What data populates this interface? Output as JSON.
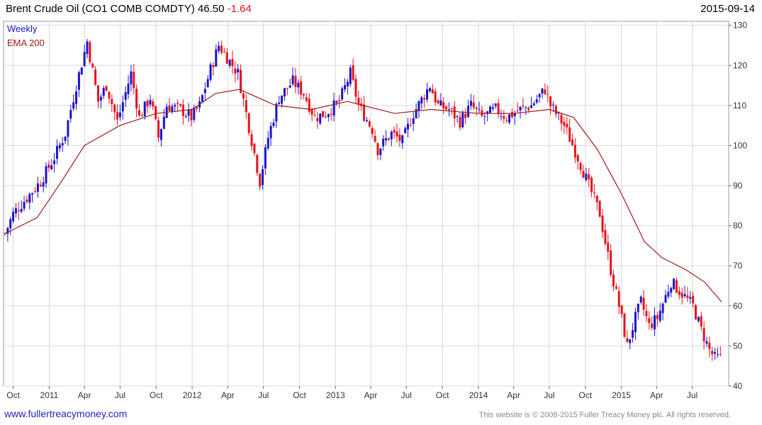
{
  "header": {
    "title": "Brent Crude Oil",
    "symbol": "(CO1 COMB COMDTY)",
    "last": "46.50",
    "change": "-1.64",
    "date": "2015-09-14"
  },
  "footer": {
    "site": "www.fullertreacymoney.com",
    "copyright": "This website is © 2008-2015 Fuller Treacy Money plc. All rights reserved."
  },
  "colors": {
    "up": "#1c14cc",
    "down": "#e8111c",
    "ema": "#a01a1a",
    "grid": "#d9d9d9",
    "legend_weekly": "#1c14cc",
    "legend_ema": "#a01a1a"
  },
  "chart_data": {
    "type": "candlestick",
    "legend": [
      "Weekly",
      "EMA 200"
    ],
    "y_ticks": [
      40,
      50,
      60,
      70,
      80,
      90,
      100,
      110,
      120,
      130
    ],
    "ylim": [
      40,
      131
    ],
    "x_ticks": [
      "Oct",
      "2011",
      "Apr",
      "Jul",
      "Oct",
      "2012",
      "Apr",
      "Jul",
      "Oct",
      "2013",
      "Apr",
      "Jul",
      "Oct",
      "2014",
      "Apr",
      "Jul",
      "Oct",
      "2015",
      "Apr",
      "Jul"
    ],
    "x_tick_dates": [
      "2010-10-01",
      "2011-01-01",
      "2011-04-01",
      "2011-07-01",
      "2011-10-01",
      "2012-01-01",
      "2012-04-01",
      "2012-07-01",
      "2012-10-01",
      "2013-01-01",
      "2013-04-01",
      "2013-07-01",
      "2013-10-01",
      "2014-01-01",
      "2014-04-01",
      "2014-07-01",
      "2014-10-01",
      "2015-01-01",
      "2015-04-01",
      "2015-07-01"
    ],
    "x_start": "2010-09-10",
    "x_end": "2015-09-14",
    "price_path": [
      [
        "2010-09-10",
        78
      ],
      [
        "2010-10-01",
        83
      ],
      [
        "2010-11-05",
        87
      ],
      [
        "2010-12-10",
        91
      ],
      [
        "2011-01-14",
        97
      ],
      [
        "2011-02-11",
        103
      ],
      [
        "2011-03-11",
        115
      ],
      [
        "2011-04-08",
        126
      ],
      [
        "2011-05-06",
        111
      ],
      [
        "2011-05-27",
        115
      ],
      [
        "2011-06-24",
        106
      ],
      [
        "2011-07-29",
        118
      ],
      [
        "2011-08-19",
        107
      ],
      [
        "2011-09-16",
        112
      ],
      [
        "2011-10-07",
        102
      ],
      [
        "2011-10-28",
        110
      ],
      [
        "2011-12-02",
        109
      ],
      [
        "2011-12-30",
        107
      ],
      [
        "2012-01-20",
        110
      ],
      [
        "2012-02-17",
        119
      ],
      [
        "2012-03-09",
        125
      ],
      [
        "2012-03-30",
        122
      ],
      [
        "2012-04-27",
        118
      ],
      [
        "2012-05-18",
        108
      ],
      [
        "2012-06-08",
        98
      ],
      [
        "2012-06-22",
        91
      ],
      [
        "2012-07-13",
        102
      ],
      [
        "2012-08-10",
        112
      ],
      [
        "2012-09-14",
        116
      ],
      [
        "2012-10-12",
        113
      ],
      [
        "2012-11-09",
        107
      ],
      [
        "2012-12-07",
        108
      ],
      [
        "2013-01-11",
        111
      ],
      [
        "2013-02-08",
        118
      ],
      [
        "2013-03-01",
        110
      ],
      [
        "2013-04-05",
        104
      ],
      [
        "2013-04-19",
        99
      ],
      [
        "2013-05-24",
        103
      ],
      [
        "2013-06-21",
        101
      ],
      [
        "2013-07-19",
        108
      ],
      [
        "2013-08-30",
        115
      ],
      [
        "2013-09-20",
        110
      ],
      [
        "2013-10-18",
        109
      ],
      [
        "2013-11-15",
        106
      ],
      [
        "2013-12-13",
        110
      ],
      [
        "2014-01-10",
        107
      ],
      [
        "2014-02-14",
        109
      ],
      [
        "2014-03-14",
        107
      ],
      [
        "2014-04-18",
        109
      ],
      [
        "2014-05-16",
        110
      ],
      [
        "2014-06-20",
        114
      ],
      [
        "2014-07-04",
        110
      ],
      [
        "2014-08-08",
        105
      ],
      [
        "2014-09-12",
        97
      ],
      [
        "2014-10-10",
        90
      ],
      [
        "2014-11-07",
        83
      ],
      [
        "2014-12-05",
        69
      ],
      [
        "2014-12-26",
        60
      ],
      [
        "2015-01-16",
        50
      ],
      [
        "2015-02-06",
        57
      ],
      [
        "2015-02-20",
        61
      ],
      [
        "2015-03-13",
        55
      ],
      [
        "2015-04-03",
        57
      ],
      [
        "2015-05-08",
        66
      ],
      [
        "2015-06-05",
        63
      ],
      [
        "2015-07-03",
        60
      ],
      [
        "2015-07-24",
        54
      ],
      [
        "2015-08-14",
        49
      ],
      [
        "2015-08-28",
        47
      ],
      [
        "2015-09-14",
        47
      ]
    ],
    "ema_200": [
      [
        "2010-09-10",
        78
      ],
      [
        "2010-12-01",
        82
      ],
      [
        "2011-02-01",
        91
      ],
      [
        "2011-04-01",
        100
      ],
      [
        "2011-07-01",
        105
      ],
      [
        "2011-10-01",
        108
      ],
      [
        "2012-01-01",
        109
      ],
      [
        "2012-03-01",
        113
      ],
      [
        "2012-05-01",
        114
      ],
      [
        "2012-08-01",
        110
      ],
      [
        "2012-11-01",
        109
      ],
      [
        "2013-02-01",
        111
      ],
      [
        "2013-06-01",
        108
      ],
      [
        "2013-09-01",
        109
      ],
      [
        "2014-01-01",
        108
      ],
      [
        "2014-04-01",
        108
      ],
      [
        "2014-07-01",
        109
      ],
      [
        "2014-09-01",
        107
      ],
      [
        "2014-11-01",
        99
      ],
      [
        "2015-01-01",
        88
      ],
      [
        "2015-03-01",
        76
      ],
      [
        "2015-04-15",
        72
      ],
      [
        "2015-06-15",
        69
      ],
      [
        "2015-08-01",
        66
      ],
      [
        "2015-09-14",
        61
      ]
    ]
  }
}
